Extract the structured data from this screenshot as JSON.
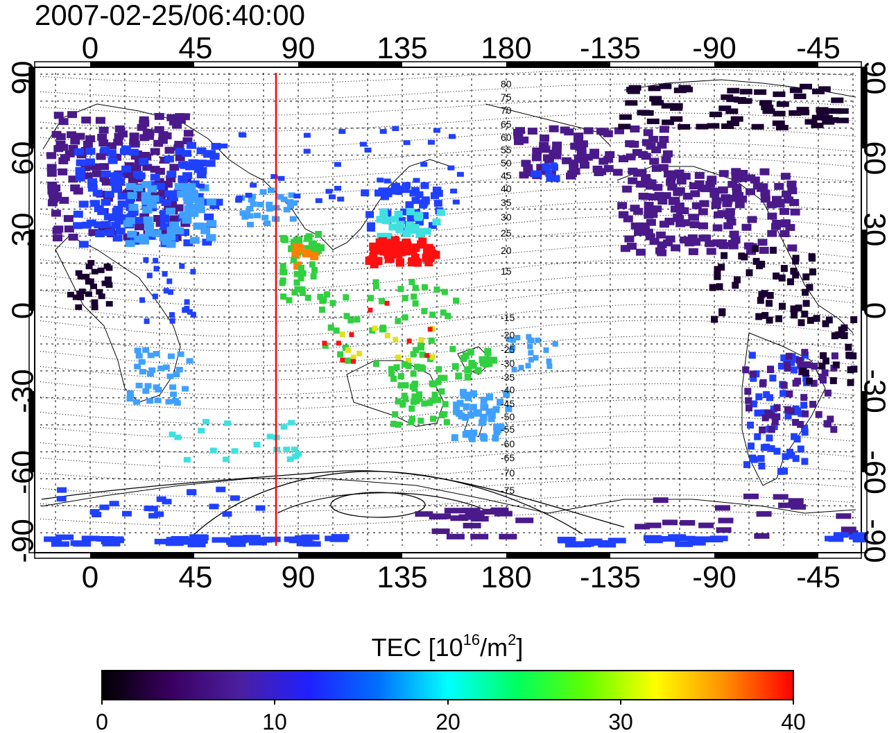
{
  "title": "2007-02-25/06:40:00",
  "map": {
    "top_lon_ticks": [
      "0",
      "45",
      "90",
      "135",
      "180",
      "-135",
      "-90",
      "-45"
    ],
    "bottom_lon_ticks": [
      "0",
      "45",
      "90",
      "135",
      "180",
      "-135",
      "-90",
      "-45"
    ],
    "left_lat_ticks": [
      "90",
      "60",
      "30",
      "0",
      "-30",
      "-60",
      "-90"
    ],
    "right_lat_ticks": [
      "90",
      "60",
      "30",
      "0",
      "-30",
      "-60",
      "-90"
    ],
    "contour_labels": [
      "80",
      "75",
      "70",
      "65",
      "60",
      "55",
      "50",
      "45",
      "40",
      "35",
      "30",
      "25",
      "20",
      "15",
      "-15",
      "-20",
      "-25",
      "-30",
      "-35",
      "-40",
      "-45",
      "-50",
      "-55",
      "-60",
      "-65",
      "-70",
      "-75"
    ],
    "marker_line": {
      "lon": 80,
      "color": "#ff0000"
    }
  },
  "colorbar": {
    "label_main": "TEC  [10",
    "label_sup1": "16",
    "label_mid": "/m",
    "label_sup2": "2",
    "label_end": "]",
    "ticks": [
      "0",
      "10",
      "20",
      "30",
      "40"
    ],
    "stops": [
      "#000000",
      "#3a0060",
      "#4b1fa0",
      "#2020ff",
      "#0070ff",
      "#00ffff",
      "#00ff60",
      "#60ff00",
      "#ffff00",
      "#ff9000",
      "#ff0000"
    ]
  },
  "legend_colors": {
    "dark": "#1a0030",
    "purple": "#4a1a8a",
    "blue": "#2040ff",
    "lightblue": "#40a0ff",
    "cyan": "#40e0e0",
    "green": "#30d040",
    "yellow": "#e0e020",
    "orange": "#ff8000",
    "red": "#ff1010"
  }
}
